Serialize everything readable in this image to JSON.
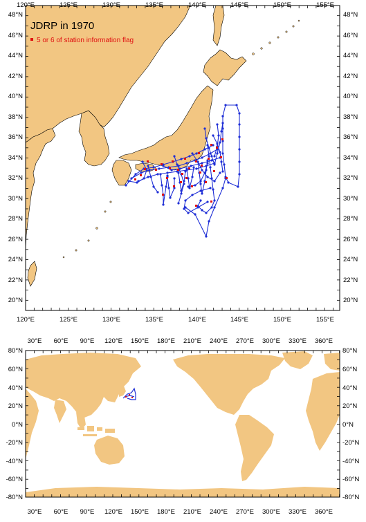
{
  "top_map": {
    "title": "JDRP in 1970",
    "legend_label": "5 or 6 of station information flag",
    "lon_labels": [
      "120°E",
      "125°E",
      "130°E",
      "135°E",
      "140°E",
      "145°E",
      "150°E",
      "155°E"
    ],
    "lat_labels": [
      "20°N",
      "22°N",
      "24°N",
      "26°N",
      "28°N",
      "30°N",
      "32°N",
      "34°N",
      "36°N",
      "38°N",
      "40°N",
      "42°N",
      "44°N",
      "46°N",
      "48°N"
    ]
  },
  "bottom_map": {
    "lon_labels": [
      "30°E",
      "60°E",
      "90°E",
      "120°E",
      "150°E",
      "180°E",
      "210°E",
      "240°E",
      "270°E",
      "300°E",
      "330°E",
      "360°E"
    ],
    "lat_labels": [
      "80°N",
      "60°N",
      "40°N",
      "20°N",
      "0°N",
      "-20°N",
      "-40°N",
      "-60°N",
      "-80°N"
    ]
  },
  "colors": {
    "land": "#f2c682",
    "track": "#1f2fd6",
    "flagged": "#e01010"
  }
}
